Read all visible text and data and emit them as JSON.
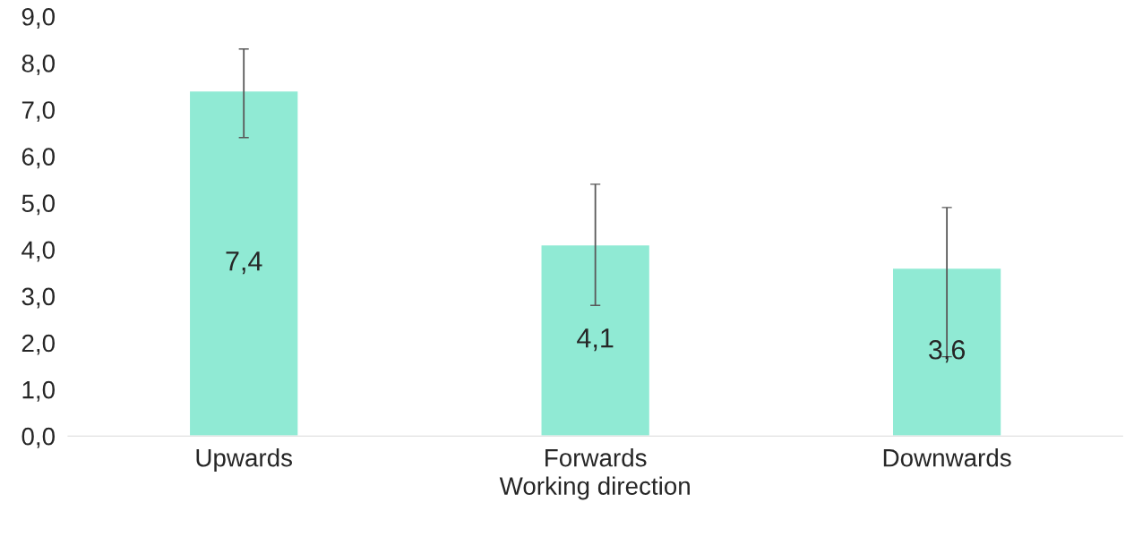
{
  "chart_data": {
    "type": "bar",
    "xlabel": "Working direction",
    "categories": [
      "Upwards",
      "Forwards",
      "Downwards"
    ],
    "values": [
      7.4,
      4.1,
      3.6
    ],
    "value_labels": [
      "7,4",
      "4,1",
      "3,6"
    ],
    "errors": [
      [
        6.4,
        8.3
      ],
      [
        2.8,
        5.4
      ],
      [
        1.7,
        4.9
      ]
    ],
    "color": "#90ead4",
    "ylim": [
      0,
      9
    ],
    "yticks": [
      {
        "value": 0,
        "label": "0,0"
      },
      {
        "value": 1,
        "label": "1,0"
      },
      {
        "value": 2,
        "label": "2,0"
      },
      {
        "value": 3,
        "label": "3,0"
      },
      {
        "value": 4,
        "label": "4,0"
      },
      {
        "value": 5,
        "label": "5,0"
      },
      {
        "value": 6,
        "label": "6,0"
      },
      {
        "value": 7,
        "label": "7,0"
      },
      {
        "value": 8,
        "label": "8,0"
      },
      {
        "value": 9,
        "label": "9,0"
      }
    ],
    "grid": false,
    "legend": false
  }
}
